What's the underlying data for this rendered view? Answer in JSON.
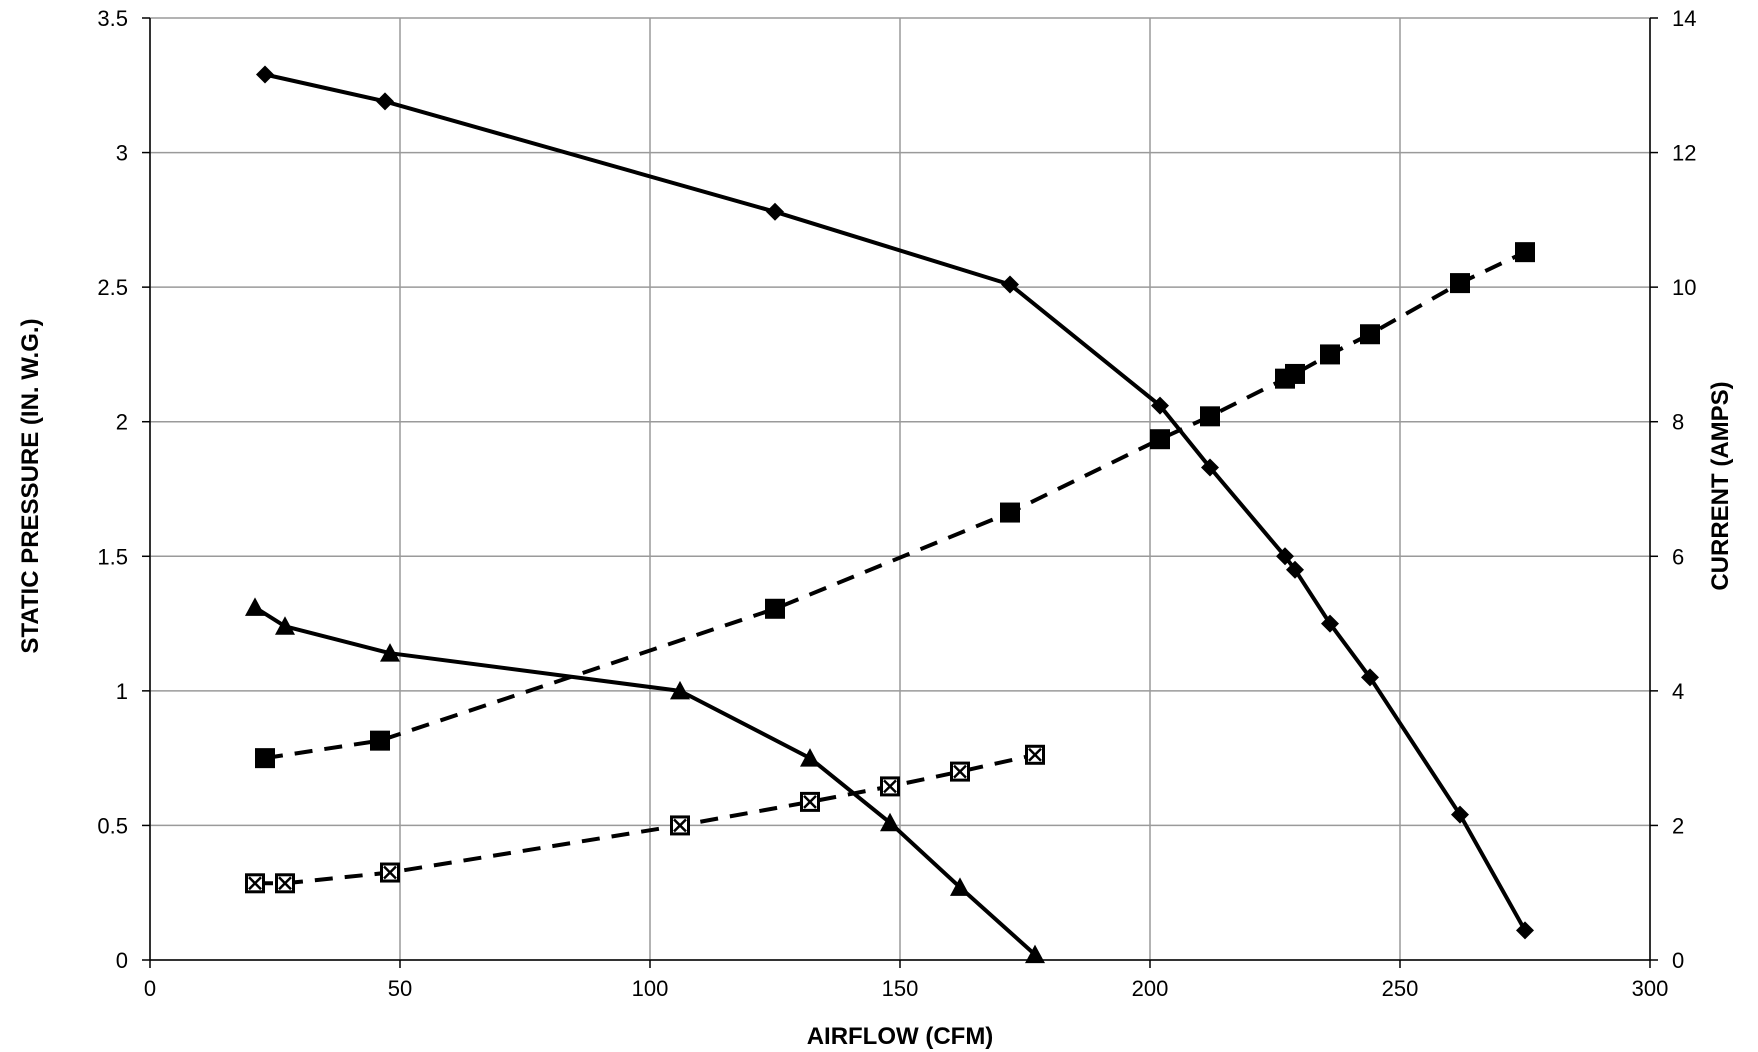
{
  "chart_data": {
    "type": "line",
    "title": "",
    "xlabel": "AIRFLOW (CFM)",
    "ylabel": "STATIC PRESSURE (IN. W.G.)",
    "y2label": "CURRENT (AMPS)",
    "xlim": [
      0,
      300
    ],
    "ylim": [
      0,
      3.5
    ],
    "y2lim": [
      0,
      14
    ],
    "xticks": [
      "0",
      "50",
      "100",
      "150",
      "200",
      "250",
      "300"
    ],
    "yticks": [
      "0",
      "0.5",
      "1",
      "1.5",
      "2",
      "2.5",
      "3",
      "3.5"
    ],
    "y2ticks": [
      "0",
      "2",
      "4",
      "6",
      "8",
      "10",
      "12",
      "14"
    ],
    "grid": true,
    "legend": "none",
    "series": [
      {
        "axis": "left",
        "marker": "diamond",
        "line": "solid",
        "x": [
          23,
          47,
          125,
          172,
          202,
          212,
          227,
          229,
          236,
          244,
          262,
          275
        ],
        "y": [
          3.29,
          3.19,
          2.78,
          2.51,
          2.06,
          1.83,
          1.5,
          1.45,
          1.25,
          1.05,
          0.54,
          0.11
        ]
      },
      {
        "axis": "left",
        "marker": "triangle",
        "line": "solid",
        "x": [
          21,
          27,
          48,
          106,
          132,
          148,
          162,
          177
        ],
        "y": [
          1.31,
          1.24,
          1.14,
          1.0,
          0.75,
          0.51,
          0.27,
          0.02
        ]
      },
      {
        "axis": "right",
        "marker": "square",
        "line": "dashed",
        "x": [
          23,
          46,
          125,
          172,
          202,
          212,
          227,
          229,
          236,
          244,
          262,
          275
        ],
        "y": [
          3.0,
          3.26,
          5.22,
          6.65,
          7.74,
          8.08,
          8.64,
          8.71,
          9.0,
          9.3,
          10.06,
          10.52
        ]
      },
      {
        "axis": "right",
        "marker": "boxed-x",
        "line": "dashed",
        "x": [
          21,
          27,
          48,
          106,
          132,
          148,
          162,
          177
        ],
        "y": [
          1.14,
          1.14,
          1.3,
          2.0,
          2.35,
          2.58,
          2.8,
          3.05
        ]
      }
    ]
  }
}
